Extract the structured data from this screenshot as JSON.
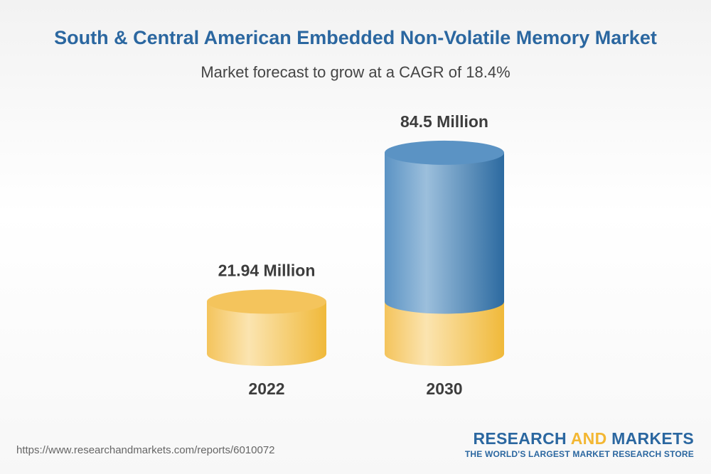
{
  "title": "South & Central American Embedded Non-Volatile Memory Market",
  "subtitle": "Market forecast to grow at a CAGR of 18.4%",
  "chart_data": {
    "type": "bar",
    "categories": [
      "2022",
      "2030"
    ],
    "values": [
      21.94,
      84.5
    ],
    "value_labels": [
      "21.94 Million",
      "84.5 Million"
    ],
    "unit": "Million",
    "title": "South & Central American Embedded Non-Volatile Memory Market",
    "subtitle": "Market forecast to grow at a CAGR of 18.4%",
    "grid": false,
    "legend": "none",
    "colors": {
      "base": "#f4c45c",
      "base_light": "#fbe4b0",
      "base_dark": "#f0b93a",
      "growth": "#5b93c4",
      "growth_light": "#9cbfdc",
      "growth_dark": "#2c6aa0",
      "label": "#3d3d3d"
    }
  },
  "footer": {
    "url": "https://www.researchandmarkets.com/reports/6010072",
    "logo_part1": "RESEARCH ",
    "logo_part2": "AND",
    "logo_part3": " MARKETS",
    "tagline": "THE WORLD'S LARGEST MARKET RESEARCH STORE"
  }
}
